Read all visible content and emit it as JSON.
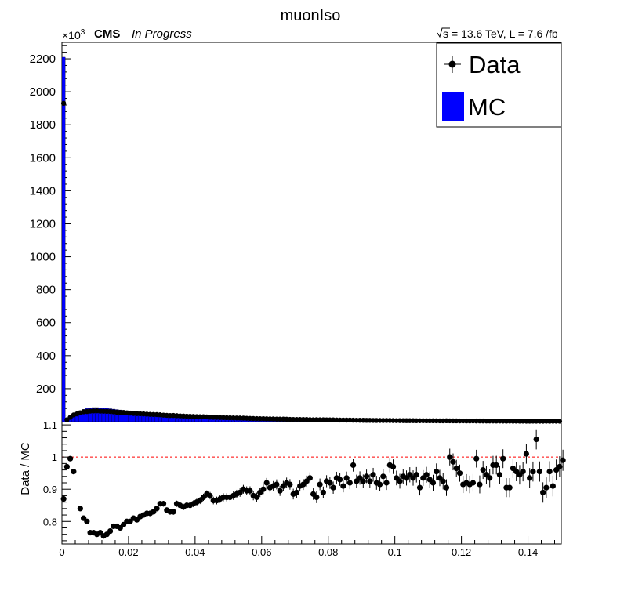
{
  "title": "muonIso",
  "header": {
    "cms": "CMS",
    "status": "In Progress",
    "lumi_text": "= 13.6 TeV, L = 7.6 /fb",
    "sqrt_s": "s",
    "exp_base": "×10",
    "exp_power": "3"
  },
  "legend": {
    "data_label": "Data",
    "mc_label": "MC"
  },
  "colors": {
    "mc": "#0000ff",
    "data": "#000000",
    "ref_line": "#ff0000"
  },
  "chart_data": [
    {
      "type": "bar",
      "name": "main",
      "xlabel": "",
      "ylabel": "",
      "xlim": [
        0,
        0.15
      ],
      "ylim": [
        0,
        2300
      ],
      "y_unit_multiplier": "×10^3",
      "y_ticks": [
        200,
        400,
        600,
        800,
        1000,
        1200,
        1400,
        1600,
        1800,
        2000,
        2200
      ],
      "series": [
        {
          "name": "Data",
          "style": "points"
        },
        {
          "name": "MC",
          "style": "filled-histogram"
        }
      ],
      "bin_width": 0.001,
      "mc_first_bin": 2210,
      "data_first_bin": 1930,
      "low_bins": [
        [
          0.001,
          6
        ],
        [
          0.002,
          18
        ],
        [
          0.003,
          35
        ],
        [
          0.004,
          50
        ],
        [
          0.005,
          62
        ],
        [
          0.006,
          71
        ],
        [
          0.007,
          78
        ],
        [
          0.008,
          82
        ],
        [
          0.009,
          85
        ],
        [
          0.01,
          86
        ],
        [
          0.011,
          85
        ],
        [
          0.012,
          84
        ],
        [
          0.013,
          82
        ],
        [
          0.014,
          80
        ],
        [
          0.015,
          77
        ],
        [
          0.016,
          75
        ],
        [
          0.017,
          72
        ],
        [
          0.018,
          70
        ],
        [
          0.019,
          68
        ],
        [
          0.02,
          65
        ],
        [
          0.022,
          61
        ],
        [
          0.025,
          56
        ],
        [
          0.03,
          48
        ],
        [
          0.035,
          42
        ],
        [
          0.04,
          36
        ],
        [
          0.045,
          31
        ],
        [
          0.05,
          27
        ],
        [
          0.06,
          20
        ],
        [
          0.07,
          15
        ],
        [
          0.08,
          12
        ],
        [
          0.09,
          9
        ],
        [
          0.1,
          7
        ],
        [
          0.11,
          6
        ],
        [
          0.12,
          5
        ],
        [
          0.13,
          4
        ],
        [
          0.14,
          3
        ],
        [
          0.15,
          3
        ]
      ]
    },
    {
      "type": "scatter",
      "name": "ratio",
      "xlabel": "",
      "ylabel": "Data / MC",
      "xlim": [
        0,
        0.15
      ],
      "ylim": [
        0.73,
        1.11
      ],
      "y_ticks": [
        0.8,
        0.9,
        1,
        1.1
      ],
      "y_tick_labels": [
        "0.8",
        "0.9",
        "1",
        "1.1"
      ],
      "x_ticks": [
        0,
        0.02,
        0.04,
        0.06,
        0.08,
        0.1,
        0.12,
        0.14
      ],
      "x_tick_labels": [
        "0",
        "0.02",
        "0.04",
        "0.06",
        "0.08",
        "0.1",
        "0.12",
        "0.14"
      ],
      "reference_line": 1,
      "points": [
        [
          0.0005,
          0.87
        ],
        [
          0.0015,
          0.97
        ],
        [
          0.0025,
          0.995
        ],
        [
          0.0035,
          0.955
        ],
        [
          0.0055,
          0.84
        ],
        [
          0.0065,
          0.81
        ],
        [
          0.0075,
          0.8
        ],
        [
          0.0085,
          0.765
        ],
        [
          0.0095,
          0.765
        ],
        [
          0.0105,
          0.76
        ],
        [
          0.0115,
          0.765
        ],
        [
          0.0125,
          0.755
        ],
        [
          0.0135,
          0.76
        ],
        [
          0.0145,
          0.77
        ],
        [
          0.0155,
          0.785
        ],
        [
          0.0165,
          0.785
        ],
        [
          0.0175,
          0.78
        ],
        [
          0.0185,
          0.79
        ],
        [
          0.0195,
          0.8
        ],
        [
          0.0205,
          0.8
        ],
        [
          0.0215,
          0.81
        ],
        [
          0.0225,
          0.805
        ],
        [
          0.0235,
          0.815
        ],
        [
          0.0245,
          0.82
        ],
        [
          0.0255,
          0.825
        ],
        [
          0.0265,
          0.825
        ],
        [
          0.0275,
          0.83
        ],
        [
          0.0285,
          0.84
        ],
        [
          0.0295,
          0.855
        ],
        [
          0.0305,
          0.855
        ],
        [
          0.0315,
          0.835
        ],
        [
          0.0325,
          0.83
        ],
        [
          0.0335,
          0.83
        ],
        [
          0.0345,
          0.855
        ],
        [
          0.0355,
          0.85
        ],
        [
          0.0365,
          0.845
        ],
        [
          0.0375,
          0.85
        ],
        [
          0.0385,
          0.85
        ],
        [
          0.0395,
          0.855
        ],
        [
          0.0405,
          0.86
        ],
        [
          0.0415,
          0.865
        ],
        [
          0.0425,
          0.875
        ],
        [
          0.0435,
          0.885
        ],
        [
          0.0445,
          0.88
        ],
        [
          0.0455,
          0.865
        ],
        [
          0.0465,
          0.865
        ],
        [
          0.0475,
          0.87
        ],
        [
          0.0485,
          0.875
        ],
        [
          0.0495,
          0.875
        ],
        [
          0.0505,
          0.875
        ],
        [
          0.0515,
          0.88
        ],
        [
          0.0525,
          0.885
        ],
        [
          0.0535,
          0.89
        ],
        [
          0.0545,
          0.9
        ],
        [
          0.0555,
          0.895
        ],
        [
          0.0565,
          0.895
        ],
        [
          0.0575,
          0.88
        ],
        [
          0.0585,
          0.875
        ],
        [
          0.0595,
          0.89
        ],
        [
          0.0605,
          0.9
        ],
        [
          0.0615,
          0.92
        ],
        [
          0.0625,
          0.905
        ],
        [
          0.0635,
          0.91
        ],
        [
          0.0645,
          0.915
        ],
        [
          0.0655,
          0.895
        ],
        [
          0.0665,
          0.91
        ],
        [
          0.0675,
          0.92
        ],
        [
          0.0685,
          0.915
        ],
        [
          0.0695,
          0.885
        ],
        [
          0.0705,
          0.89
        ],
        [
          0.0715,
          0.91
        ],
        [
          0.0725,
          0.915
        ],
        [
          0.0735,
          0.925
        ],
        [
          0.0745,
          0.935
        ],
        [
          0.0755,
          0.885
        ],
        [
          0.0765,
          0.875
        ],
        [
          0.0775,
          0.915
        ],
        [
          0.0785,
          0.89
        ],
        [
          0.0795,
          0.925
        ],
        [
          0.0805,
          0.92
        ],
        [
          0.0815,
          0.905
        ],
        [
          0.0825,
          0.935
        ],
        [
          0.0835,
          0.93
        ],
        [
          0.0845,
          0.91
        ],
        [
          0.0855,
          0.935
        ],
        [
          0.0865,
          0.92
        ],
        [
          0.0875,
          0.975
        ],
        [
          0.0885,
          0.925
        ],
        [
          0.0895,
          0.935
        ],
        [
          0.0905,
          0.925
        ],
        [
          0.0915,
          0.94
        ],
        [
          0.0925,
          0.925
        ],
        [
          0.0935,
          0.945
        ],
        [
          0.0945,
          0.92
        ],
        [
          0.0955,
          0.915
        ],
        [
          0.0965,
          0.94
        ],
        [
          0.0975,
          0.92
        ],
        [
          0.0985,
          0.975
        ],
        [
          0.0995,
          0.97
        ],
        [
          0.1005,
          0.935
        ],
        [
          0.1015,
          0.925
        ],
        [
          0.1025,
          0.94
        ],
        [
          0.1035,
          0.935
        ],
        [
          0.1045,
          0.945
        ],
        [
          0.1055,
          0.935
        ],
        [
          0.1065,
          0.945
        ],
        [
          0.1075,
          0.905
        ],
        [
          0.1085,
          0.935
        ],
        [
          0.1095,
          0.945
        ],
        [
          0.1105,
          0.93
        ],
        [
          0.1115,
          0.92
        ],
        [
          0.1125,
          0.955
        ],
        [
          0.1135,
          0.935
        ],
        [
          0.1145,
          0.925
        ],
        [
          0.1155,
          0.905
        ],
        [
          0.1165,
          1.0
        ],
        [
          0.1175,
          0.985
        ],
        [
          0.1185,
          0.965
        ],
        [
          0.1195,
          0.95
        ],
        [
          0.1205,
          0.915
        ],
        [
          0.1215,
          0.92
        ],
        [
          0.1225,
          0.915
        ],
        [
          0.1235,
          0.92
        ],
        [
          0.1245,
          0.995
        ],
        [
          0.1255,
          0.915
        ],
        [
          0.1265,
          0.96
        ],
        [
          0.1275,
          0.945
        ],
        [
          0.1285,
          0.935
        ],
        [
          0.1295,
          0.975
        ],
        [
          0.1305,
          0.975
        ],
        [
          0.1315,
          0.945
        ],
        [
          0.1325,
          0.995
        ],
        [
          0.1335,
          0.905
        ],
        [
          0.1345,
          0.905
        ],
        [
          0.1355,
          0.965
        ],
        [
          0.1365,
          0.955
        ],
        [
          0.1375,
          0.945
        ],
        [
          0.1385,
          0.955
        ],
        [
          0.1395,
          1.01
        ],
        [
          0.1405,
          0.935
        ],
        [
          0.1415,
          0.955
        ],
        [
          0.1425,
          1.055
        ],
        [
          0.1435,
          0.955
        ],
        [
          0.1445,
          0.89
        ],
        [
          0.1455,
          0.905
        ],
        [
          0.1465,
          0.955
        ],
        [
          0.1475,
          0.91
        ],
        [
          0.1485,
          0.96
        ],
        [
          0.1495,
          0.97
        ],
        [
          0.1505,
          0.99
        ]
      ]
    }
  ]
}
